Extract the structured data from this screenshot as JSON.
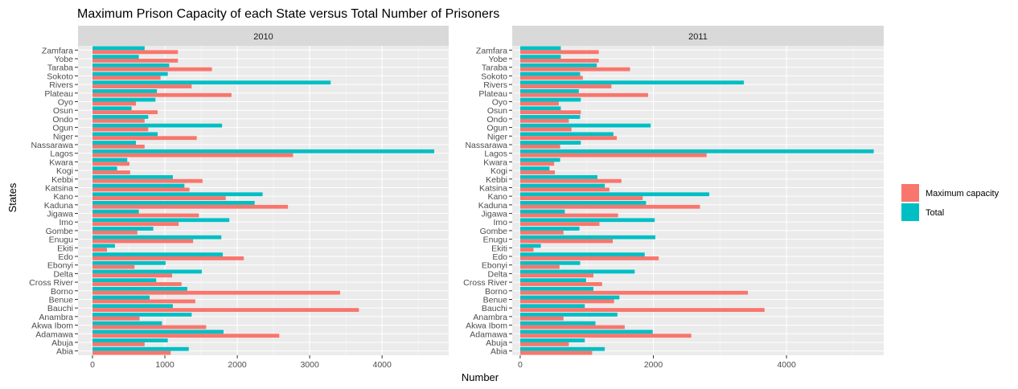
{
  "chart_data": {
    "type": "bar",
    "orientation": "horizontal",
    "title": "Maximum Prison Capacity of each State versus Total Number of Prisoners",
    "xlabel": "Number",
    "ylabel": "States",
    "legend_position": "right",
    "grid": true,
    "categories": [
      "Abia",
      "Abuja",
      "Adamawa",
      "Akwa Ibom",
      "Anambra",
      "Bauchi",
      "Benue",
      "Borno",
      "Cross River",
      "Delta",
      "Ebonyi",
      "Edo",
      "Ekiti",
      "Enugu",
      "Gombe",
      "Imo",
      "Jigawa",
      "Kaduna",
      "Kano",
      "Katsina",
      "Kebbi",
      "Kogi",
      "Kwara",
      "Lagos",
      "Nassarawa",
      "Niger",
      "Ogun",
      "Ondo",
      "Osun",
      "Oyo",
      "Plateau",
      "Rivers",
      "Sokoto",
      "Taraba",
      "Yobe",
      "Zamfara"
    ],
    "series_order": [
      "Total",
      "Maximum capacity"
    ],
    "panels": [
      {
        "label": "2010",
        "xlim": [
          -200,
          4920
        ],
        "xticks": [
          0,
          1000,
          2000,
          3000,
          4000
        ],
        "series": [
          {
            "name": "Maximum capacity",
            "color": "#F8766D",
            "values": [
              1080,
              720,
              2580,
              1570,
              650,
              3680,
              1420,
              3420,
              1230,
              1100,
              580,
              2090,
              200,
              1390,
              620,
              1190,
              1470,
              2700,
              1840,
              1340,
              1520,
              520,
              510,
              2770,
              720,
              1440,
              770,
              720,
              900,
              600,
              1920,
              1370,
              940,
              1650,
              1180,
              1180
            ]
          },
          {
            "name": "Total",
            "color": "#00BFC4",
            "values": [
              1330,
              1040,
              1810,
              960,
              1370,
              1110,
              790,
              1310,
              880,
              1510,
              1010,
              1800,
              310,
              1780,
              840,
              1890,
              640,
              2240,
              2350,
              1270,
              1110,
              340,
              480,
              4720,
              600,
              900,
              1790,
              770,
              540,
              870,
              890,
              3290,
              1040,
              1060,
              640,
              720
            ]
          }
        ]
      },
      {
        "label": "2011",
        "xlim": [
          -120,
          5460
        ],
        "xticks": [
          0,
          2000,
          4000
        ],
        "series": [
          {
            "name": "Maximum capacity",
            "color": "#F8766D",
            "values": [
              1080,
              730,
              2570,
              1570,
              650,
              3670,
              1410,
              3420,
              1230,
              1100,
              590,
              2080,
              200,
              1390,
              650,
              1190,
              1470,
              2700,
              1840,
              1340,
              1520,
              520,
              510,
              2800,
              600,
              1450,
              770,
              730,
              910,
              580,
              1920,
              1370,
              940,
              1650,
              1180,
              1180
            ]
          },
          {
            "name": "Total",
            "color": "#00BFC4",
            "values": [
              1270,
              970,
              1990,
              1130,
              1460,
              970,
              1490,
              1100,
              990,
              1720,
              900,
              1870,
              310,
              2030,
              890,
              2020,
              670,
              1890,
              2840,
              1270,
              1160,
              440,
              600,
              5310,
              910,
              1400,
              1960,
              900,
              610,
              910,
              880,
              3360,
              900,
              1150,
              610,
              610
            ]
          }
        ]
      }
    ]
  }
}
